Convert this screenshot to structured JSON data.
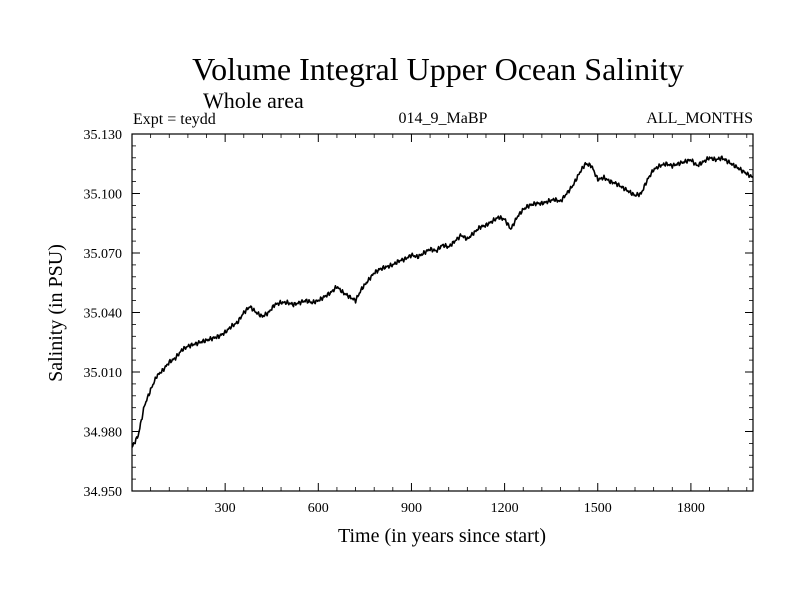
{
  "chart_data": {
    "type": "line",
    "title": "Volume Integral Upper Ocean Salinity",
    "subtitle": "Whole area",
    "expt_label": "Expt = teydd",
    "run_label": "014_9_MaBP",
    "months_label": "ALL_MONTHS",
    "xlabel": "Time (in years since start)",
    "ylabel": "Salinity (in PSU)",
    "xlim": [
      0,
      2000
    ],
    "ylim": [
      34.95,
      35.13
    ],
    "x_ticks": [
      300,
      600,
      900,
      1200,
      1500,
      1800
    ],
    "x_tick_labels": [
      "300",
      "600",
      "900",
      "1200",
      "1500",
      "1800"
    ],
    "y_ticks": [
      34.95,
      34.98,
      35.01,
      35.04,
      35.07,
      35.1,
      35.13
    ],
    "y_tick_labels": [
      "34.950",
      "34.980",
      "35.010",
      "35.040",
      "35.070",
      "35.100",
      "35.130"
    ],
    "grid": false,
    "series": [
      {
        "name": "Salinity",
        "x": [
          0,
          20,
          40,
          60,
          80,
          100,
          120,
          140,
          160,
          180,
          200,
          220,
          240,
          260,
          280,
          300,
          320,
          340,
          360,
          380,
          400,
          420,
          440,
          460,
          480,
          500,
          520,
          540,
          560,
          580,
          600,
          620,
          640,
          660,
          680,
          700,
          720,
          740,
          760,
          780,
          800,
          820,
          840,
          860,
          880,
          900,
          920,
          940,
          960,
          980,
          1000,
          1020,
          1040,
          1060,
          1080,
          1100,
          1120,
          1140,
          1160,
          1180,
          1200,
          1220,
          1240,
          1260,
          1280,
          1300,
          1320,
          1340,
          1360,
          1380,
          1400,
          1420,
          1440,
          1460,
          1480,
          1500,
          1520,
          1540,
          1560,
          1580,
          1600,
          1620,
          1640,
          1660,
          1680,
          1700,
          1720,
          1740,
          1760,
          1780,
          1800,
          1820,
          1840,
          1860,
          1880,
          1900,
          1920,
          1940,
          1960,
          1980,
          2000
        ],
        "values": [
          34.972,
          34.978,
          34.993,
          35.001,
          35.008,
          35.011,
          35.015,
          35.017,
          35.021,
          35.023,
          35.024,
          35.025,
          35.026,
          35.027,
          35.028,
          35.03,
          35.033,
          35.035,
          35.04,
          35.043,
          35.04,
          35.038,
          35.04,
          35.044,
          35.045,
          35.045,
          35.044,
          35.045,
          35.046,
          35.045,
          35.046,
          35.048,
          35.05,
          35.053,
          35.05,
          35.048,
          35.046,
          35.052,
          35.056,
          35.06,
          35.062,
          35.063,
          35.064,
          35.066,
          35.067,
          35.069,
          35.068,
          35.07,
          35.072,
          35.071,
          35.074,
          35.073,
          35.076,
          35.079,
          35.077,
          35.08,
          35.083,
          35.084,
          35.086,
          35.088,
          35.087,
          35.082,
          35.088,
          35.092,
          35.094,
          35.095,
          35.095,
          35.096,
          35.097,
          35.096,
          35.1,
          35.104,
          35.11,
          35.115,
          35.114,
          35.107,
          35.108,
          35.106,
          35.105,
          35.103,
          35.101,
          35.099,
          35.1,
          35.107,
          35.112,
          35.114,
          35.115,
          35.114,
          35.115,
          35.116,
          35.117,
          35.114,
          35.116,
          35.118,
          35.117,
          35.118,
          35.116,
          35.114,
          35.112,
          35.11,
          35.108
        ]
      }
    ]
  }
}
